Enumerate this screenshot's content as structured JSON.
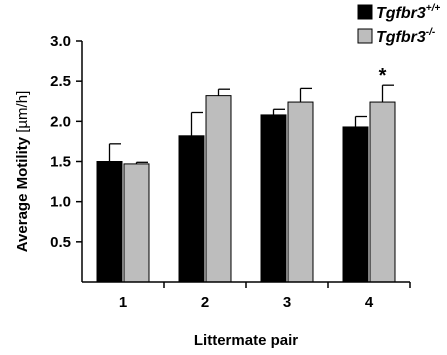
{
  "chart_data": {
    "type": "bar",
    "xlabel": "Littermate pair",
    "ylabel": "Average Motility",
    "ylabel_unit": "[µm/h]",
    "categories": [
      "1",
      "2",
      "3",
      "4"
    ],
    "ylim": [
      0,
      3.0
    ],
    "yticks": [
      "0.5",
      "1.0",
      "1.5",
      "2.0",
      "2.5",
      "3.0"
    ],
    "series": [
      {
        "name": "Tgfbr3",
        "superscript": "+/+",
        "color": "#000000",
        "values": [
          1.5,
          1.82,
          2.08,
          1.93
        ],
        "errors": [
          0.22,
          0.29,
          0.07,
          0.13
        ]
      },
      {
        "name": "Tgfbr3",
        "superscript": "-/-",
        "color": "#bdbdbd",
        "values": [
          1.47,
          2.32,
          2.24,
          2.24
        ],
        "errors": [
          0.02,
          0.08,
          0.17,
          0.21
        ]
      }
    ],
    "annotations": [
      {
        "text": "*",
        "category": "4",
        "series": 1
      }
    ],
    "legend_position": "top-right",
    "grid": false
  }
}
